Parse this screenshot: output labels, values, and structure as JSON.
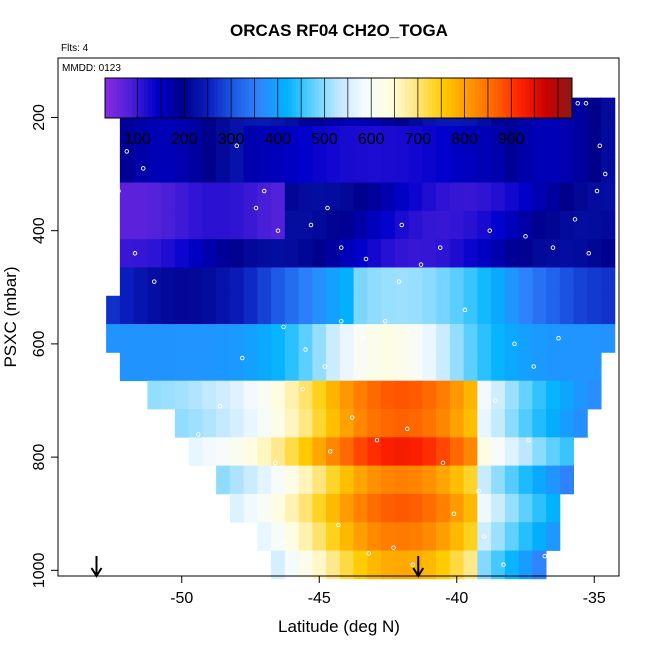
{
  "chart_data": {
    "type": "heatmap",
    "title": "ORCAS RF04 CH2O_TOGA",
    "flights_label": "Flts: 4",
    "date_label": "MMDD: 0123",
    "xlabel": "Latitude (deg N)",
    "ylabel": "PSXC (mbar)",
    "xlim": [
      -54.5,
      -34.1
    ],
    "ylim": [
      1010,
      95
    ],
    "y_reversed": true,
    "x_ticks": [
      -50,
      -45,
      -40,
      -35
    ],
    "x_tick_labels": [
      "-50",
      "-45",
      "-40",
      "-35"
    ],
    "y_ticks": [
      200,
      400,
      600,
      800,
      1000
    ],
    "y_tick_labels": [
      "200",
      "400",
      "600",
      "800",
      "1000"
    ],
    "colorbar": {
      "range": [
        30,
        1030
      ],
      "ticks": [
        100,
        200,
        300,
        400,
        500,
        600,
        700,
        800,
        900
      ],
      "tick_labels": [
        "100",
        "200",
        "300",
        "400",
        "500",
        "600",
        "700",
        "800",
        "900"
      ],
      "colors": [
        "#8a2be2",
        "#4b1fd8",
        "#0000cd",
        "#00008b",
        "#0a1fbf",
        "#1e5ce6",
        "#2f86ff",
        "#00b2ff",
        "#5fd0ff",
        "#bfe8ff",
        "#f5fbff",
        "#fffde0",
        "#ffe680",
        "#ffcc00",
        "#ff9900",
        "#ff6600",
        "#ff2200",
        "#cc0000",
        "#8b1a1a"
      ]
    },
    "bins_lat": [
      -52.5,
      -52.0,
      -51.5,
      -51.0,
      -50.5,
      -50.0,
      -49.5,
      -49.0,
      -48.5,
      -48.0,
      -47.5,
      -47.0,
      -46.5,
      -46.0,
      -45.5,
      -45.0,
      -44.5,
      -44.0,
      -43.5,
      -43.0,
      -42.5,
      -42.0,
      -41.5,
      -41.0,
      -40.5,
      -40.0,
      -39.5,
      -39.0,
      -38.5,
      -38.0,
      -37.5,
      -37.0,
      -36.5,
      -36.0,
      -35.5,
      -35.0,
      -34.5
    ],
    "bins_p": [
      190,
      240,
      290,
      340,
      390,
      440,
      490,
      540,
      590,
      640,
      690,
      740,
      790,
      840,
      890,
      940,
      990
    ],
    "profile_points": [
      [
        -51.8,
        178
      ],
      [
        -51.5,
        175
      ],
      [
        -51.2,
        175
      ],
      [
        -50.9,
        175
      ],
      [
        -50.6,
        175
      ],
      [
        -50.3,
        175
      ],
      [
        -50.0,
        175
      ],
      [
        -49.7,
        175
      ],
      [
        -49.4,
        175
      ],
      [
        -49.1,
        175
      ],
      [
        -38.0,
        175
      ],
      [
        -37.7,
        175
      ],
      [
        -37.4,
        175
      ],
      [
        -37.1,
        175
      ],
      [
        -36.8,
        175
      ],
      [
        -36.5,
        175
      ],
      [
        -36.2,
        175
      ],
      [
        -35.9,
        175
      ],
      [
        -35.6,
        175
      ],
      [
        -35.3,
        175
      ],
      [
        -52.0,
        260
      ],
      [
        -52.3,
        330
      ],
      [
        -51.7,
        440
      ],
      [
        -51.0,
        490
      ],
      [
        -47.3,
        360
      ],
      [
        -47.0,
        330
      ],
      [
        -46.5,
        400
      ],
      [
        -45.3,
        390
      ],
      [
        -44.2,
        430
      ],
      [
        -43.3,
        450
      ],
      [
        -42.0,
        390
      ],
      [
        -41.3,
        460
      ],
      [
        -40.6,
        430
      ],
      [
        -38.8,
        400
      ],
      [
        -37.5,
        410
      ],
      [
        -36.5,
        430
      ],
      [
        -35.7,
        380
      ],
      [
        -34.9,
        330
      ],
      [
        -46.3,
        570
      ],
      [
        -45.5,
        610
      ],
      [
        -44.8,
        640
      ],
      [
        -44.2,
        560
      ],
      [
        -43.4,
        590
      ],
      [
        -42.6,
        560
      ],
      [
        -42.1,
        490
      ],
      [
        -41.8,
        580
      ],
      [
        -39.7,
        540
      ],
      [
        -37.9,
        600
      ],
      [
        -37.2,
        640
      ],
      [
        -36.3,
        590
      ],
      [
        -45.6,
        680
      ],
      [
        -44.6,
        790
      ],
      [
        -43.8,
        730
      ],
      [
        -42.9,
        770
      ],
      [
        -41.8,
        750
      ],
      [
        -40.5,
        810
      ],
      [
        -39.2,
        860
      ],
      [
        -38.6,
        700
      ],
      [
        -37.4,
        770
      ],
      [
        -46.6,
        810
      ],
      [
        -46.3,
        950
      ],
      [
        -44.3,
        920
      ],
      [
        -43.2,
        970
      ],
      [
        -42.3,
        960
      ],
      [
        -41.6,
        990
      ],
      [
        -40.1,
        900
      ],
      [
        -39.0,
        940
      ],
      [
        -38.3,
        990
      ],
      [
        -36.8,
        975
      ],
      [
        -35.2,
        440
      ],
      [
        -34.8,
        250
      ],
      [
        -34.6,
        300
      ],
      [
        -47.8,
        625
      ],
      [
        -48.6,
        710
      ],
      [
        -49.4,
        760
      ],
      [
        -50.2,
        820
      ],
      [
        -51.4,
        290
      ],
      [
        -48.0,
        250
      ],
      [
        -44.7,
        360
      ]
    ],
    "arrows_lat": [
      -53.1,
      -41.4
    ]
  }
}
